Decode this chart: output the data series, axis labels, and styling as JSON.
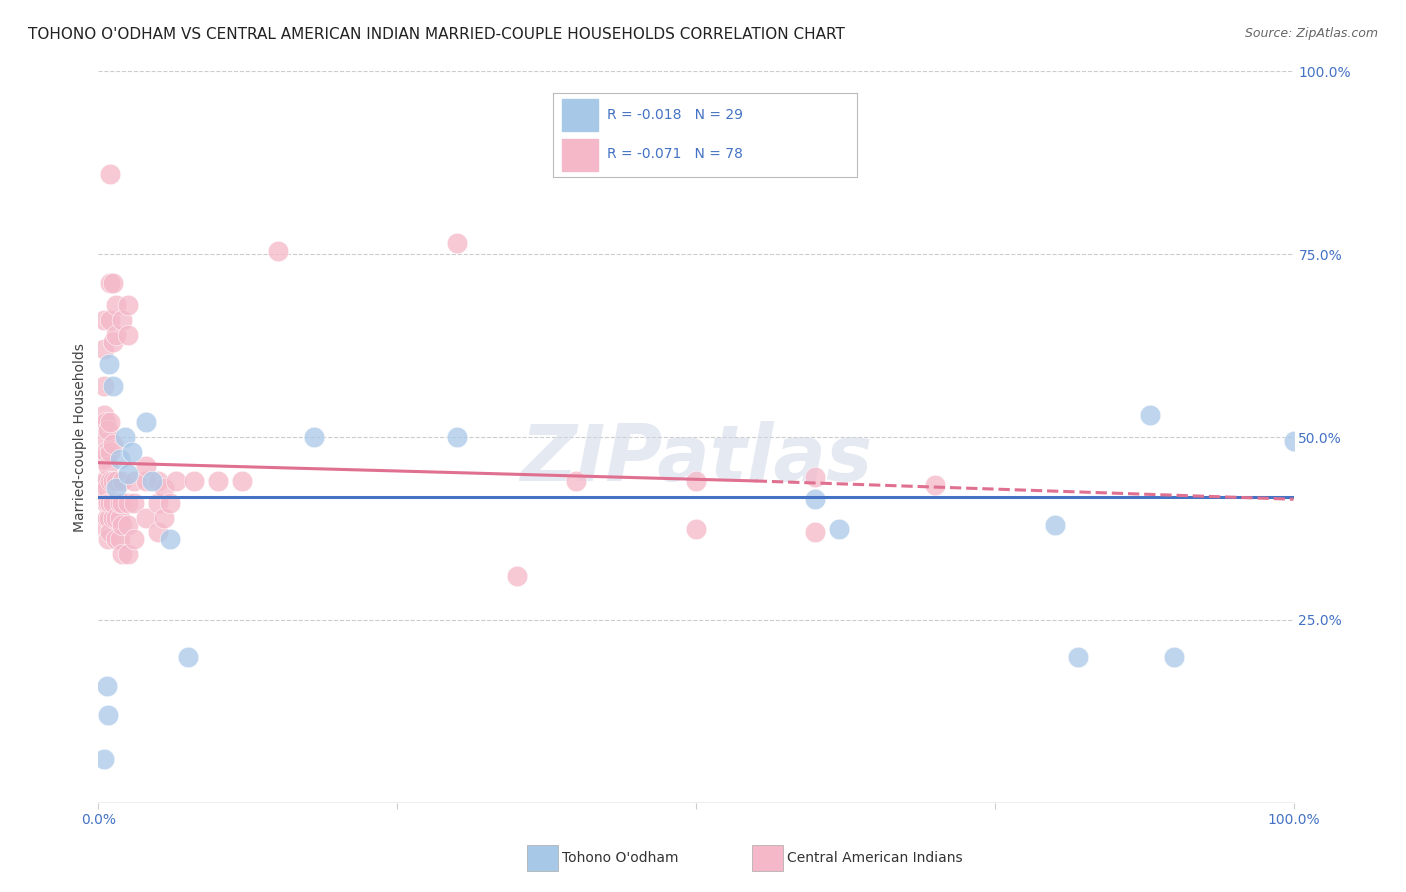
{
  "title": "TOHONO O'ODHAM VS CENTRAL AMERICAN INDIAN MARRIED-COUPLE HOUSEHOLDS CORRELATION CHART",
  "source": "Source: ZipAtlas.com",
  "ylabel": "Married-couple Households",
  "xlim": [
    0,
    1.0
  ],
  "ylim": [
    0,
    1.0
  ],
  "watermark": "ZIPatlas",
  "color_blue": "#a8c8e8",
  "color_pink": "#f4b8c8",
  "color_blue_line": "#4472c4",
  "color_pink_line": "#e07090",
  "color_tick": "#4472c4",
  "color_grid": "#cccccc",
  "blue_scatter": [
    [
      0.005,
      0.06
    ],
    [
      0.007,
      0.16
    ],
    [
      0.008,
      0.12
    ],
    [
      0.009,
      0.6
    ],
    [
      0.012,
      0.57
    ],
    [
      0.015,
      0.43
    ],
    [
      0.018,
      0.47
    ],
    [
      0.022,
      0.5
    ],
    [
      0.025,
      0.45
    ],
    [
      0.028,
      0.48
    ],
    [
      0.04,
      0.52
    ],
    [
      0.045,
      0.44
    ],
    [
      0.06,
      0.36
    ],
    [
      0.075,
      0.2
    ],
    [
      0.18,
      0.5
    ],
    [
      0.3,
      0.5
    ],
    [
      0.6,
      0.415
    ],
    [
      0.62,
      0.375
    ],
    [
      0.8,
      0.38
    ],
    [
      0.82,
      0.2
    ],
    [
      0.88,
      0.53
    ],
    [
      0.9,
      0.2
    ],
    [
      1.0,
      0.495
    ]
  ],
  "pink_scatter": [
    [
      0.003,
      0.38
    ],
    [
      0.004,
      0.42
    ],
    [
      0.004,
      0.47
    ],
    [
      0.005,
      0.44
    ],
    [
      0.005,
      0.5
    ],
    [
      0.005,
      0.53
    ],
    [
      0.005,
      0.57
    ],
    [
      0.005,
      0.62
    ],
    [
      0.005,
      0.66
    ],
    [
      0.006,
      0.41
    ],
    [
      0.006,
      0.44
    ],
    [
      0.006,
      0.48
    ],
    [
      0.006,
      0.52
    ],
    [
      0.007,
      0.39
    ],
    [
      0.007,
      0.43
    ],
    [
      0.008,
      0.36
    ],
    [
      0.008,
      0.41
    ],
    [
      0.008,
      0.46
    ],
    [
      0.008,
      0.51
    ],
    [
      0.009,
      0.39
    ],
    [
      0.01,
      0.37
    ],
    [
      0.01,
      0.41
    ],
    [
      0.01,
      0.44
    ],
    [
      0.01,
      0.48
    ],
    [
      0.01,
      0.52
    ],
    [
      0.01,
      0.66
    ],
    [
      0.01,
      0.71
    ],
    [
      0.01,
      0.86
    ],
    [
      0.012,
      0.39
    ],
    [
      0.012,
      0.41
    ],
    [
      0.012,
      0.44
    ],
    [
      0.012,
      0.49
    ],
    [
      0.012,
      0.63
    ],
    [
      0.012,
      0.71
    ],
    [
      0.015,
      0.36
    ],
    [
      0.015,
      0.39
    ],
    [
      0.015,
      0.44
    ],
    [
      0.015,
      0.64
    ],
    [
      0.015,
      0.68
    ],
    [
      0.018,
      0.36
    ],
    [
      0.018,
      0.39
    ],
    [
      0.018,
      0.41
    ],
    [
      0.02,
      0.34
    ],
    [
      0.02,
      0.38
    ],
    [
      0.02,
      0.41
    ],
    [
      0.02,
      0.44
    ],
    [
      0.02,
      0.66
    ],
    [
      0.025,
      0.34
    ],
    [
      0.025,
      0.38
    ],
    [
      0.025,
      0.41
    ],
    [
      0.025,
      0.64
    ],
    [
      0.025,
      0.68
    ],
    [
      0.03,
      0.36
    ],
    [
      0.03,
      0.41
    ],
    [
      0.03,
      0.44
    ],
    [
      0.04,
      0.39
    ],
    [
      0.04,
      0.44
    ],
    [
      0.04,
      0.46
    ],
    [
      0.05,
      0.37
    ],
    [
      0.05,
      0.41
    ],
    [
      0.05,
      0.44
    ],
    [
      0.055,
      0.39
    ],
    [
      0.055,
      0.43
    ],
    [
      0.06,
      0.41
    ],
    [
      0.065,
      0.44
    ],
    [
      0.08,
      0.44
    ],
    [
      0.1,
      0.44
    ],
    [
      0.12,
      0.44
    ],
    [
      0.15,
      0.755
    ],
    [
      0.3,
      0.765
    ],
    [
      0.35,
      0.31
    ],
    [
      0.4,
      0.44
    ],
    [
      0.5,
      0.44
    ],
    [
      0.5,
      0.375
    ],
    [
      0.6,
      0.445
    ],
    [
      0.6,
      0.37
    ],
    [
      0.7,
      0.435
    ]
  ],
  "blue_line": [
    [
      0.0,
      0.418
    ],
    [
      1.0,
      0.418
    ]
  ],
  "pink_line_solid": [
    [
      0.0,
      0.465
    ],
    [
      0.55,
      0.44
    ]
  ],
  "pink_line_dashed": [
    [
      0.55,
      0.44
    ],
    [
      1.0,
      0.415
    ]
  ],
  "background_color": "#ffffff",
  "title_fontsize": 11,
  "source_fontsize": 9,
  "tick_fontsize": 10,
  "ylabel_fontsize": 10,
  "legend_entries": [
    {
      "label": "R = -0.018  N = 29",
      "color": "#a8c8e8"
    },
    {
      "label": "R = -0.071  N = 78",
      "color": "#f4b8c8"
    }
  ]
}
